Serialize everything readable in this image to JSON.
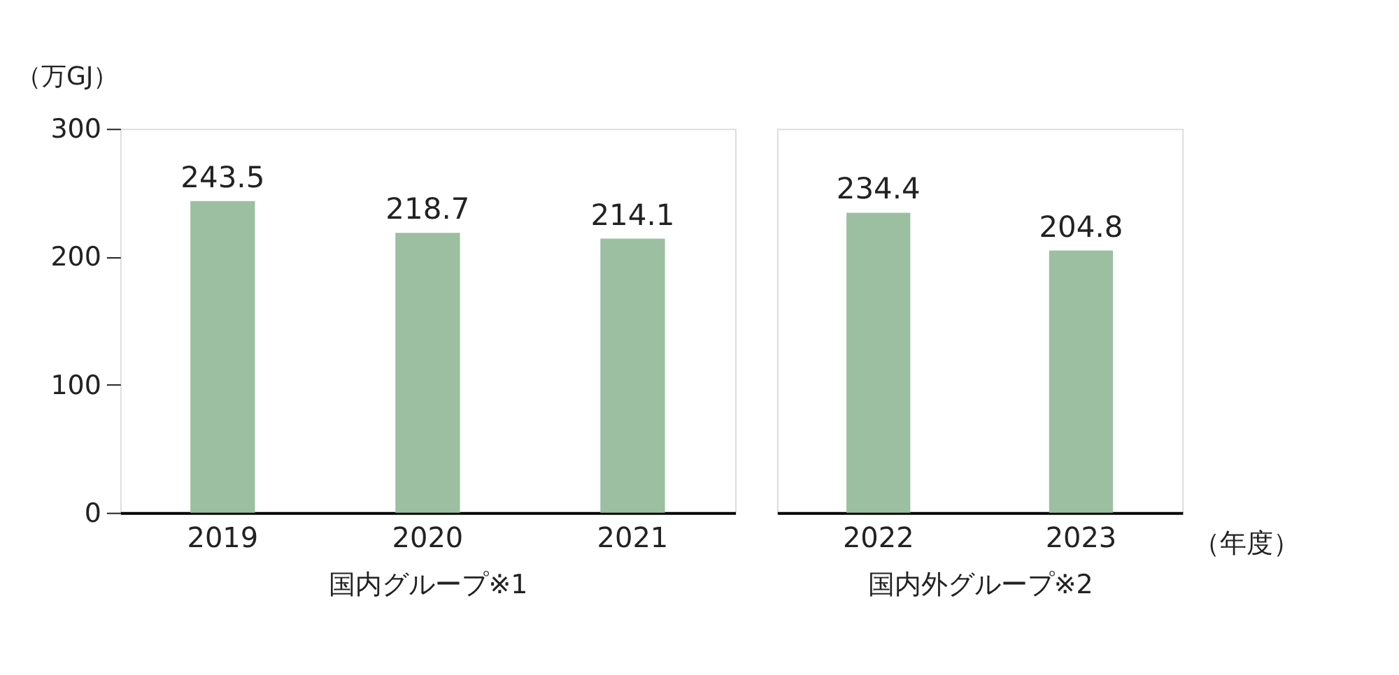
{
  "chart_data": [
    {
      "type": "bar",
      "ylabel": "（万GJ）",
      "xlabel": "国内グループ※1",
      "categories": [
        "2019",
        "2020",
        "2021"
      ],
      "values": [
        243.5,
        218.7,
        214.1
      ],
      "color": "#9bbfa0",
      "ylim": [
        0,
        300
      ],
      "yticks": [
        0,
        100,
        200,
        300
      ],
      "data_labels": true,
      "grid": false
    },
    {
      "type": "bar",
      "xlabel": "国内外グループ※2",
      "categories": [
        "2022",
        "2023"
      ],
      "values": [
        234.4,
        204.8
      ],
      "color": "#9bbfa0",
      "ylim": [
        0,
        300
      ],
      "tick_labels": "x",
      "data_labels": true,
      "grid": false,
      "annotations": [
        "（年度）"
      ]
    }
  ]
}
